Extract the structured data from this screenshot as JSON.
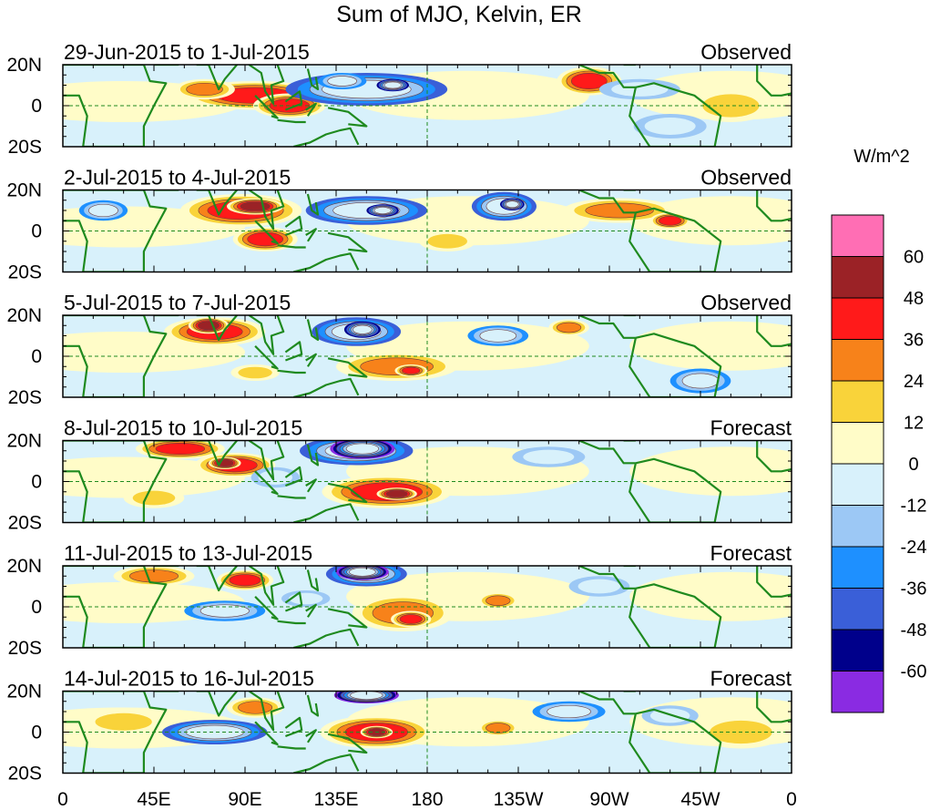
{
  "chart_data": {
    "type": "heatmap",
    "title": "Sum of MJO, Kelvin, ER",
    "colorbar": {
      "unit_label": "W/m^2",
      "tick_labels": [
        "60",
        "48",
        "36",
        "24",
        "12",
        "0",
        "-12",
        "-24",
        "-36",
        "-48",
        "-60"
      ],
      "levels": [
        -60,
        -48,
        -36,
        -24,
        -12,
        0,
        12,
        24,
        36,
        48,
        60
      ],
      "colors": [
        "#8a2be2",
        "#00008b",
        "#3a5fd8",
        "#1e90ff",
        "#9cc8f5",
        "#d8f1fb",
        "#fffcc8",
        "#f9d33a",
        "#f7821a",
        "#ff1a1a",
        "#9b2226",
        "#ff6eb4"
      ]
    },
    "x_axis": {
      "tick_labels": [
        "0",
        "45E",
        "90E",
        "135E",
        "180",
        "135W",
        "90W",
        "45W",
        "0"
      ],
      "lon_range": [
        0,
        360
      ]
    },
    "y_axis": {
      "tick_labels": [
        "20N",
        "0",
        "20S"
      ],
      "lat_range": [
        -20,
        20
      ]
    },
    "colors": {
      "coast": "#1f8a1f",
      "grid": "#1f8a1f"
    },
    "panels": [
      {
        "label": "29-Jun-2015 to 1-Jul-2015",
        "status": "Observed",
        "blobs": [
          {
            "lon": 95,
            "lat": 5,
            "rx": 35,
            "ry": 7,
            "v": 36
          },
          {
            "lon": 112,
            "lat": 0,
            "rx": 18,
            "ry": 6,
            "v": 36
          },
          {
            "lon": 70,
            "lat": 8,
            "rx": 15,
            "ry": 5,
            "v": 24
          },
          {
            "lon": 150,
            "lat": 8,
            "rx": 40,
            "ry": 8,
            "v": -36
          },
          {
            "lon": 163,
            "lat": 10,
            "rx": 8,
            "ry": 3,
            "v": -48
          },
          {
            "lon": 138,
            "lat": 12,
            "rx": 12,
            "ry": 4,
            "v": -24
          },
          {
            "lon": 260,
            "lat": 12,
            "rx": 16,
            "ry": 7,
            "v": 36
          },
          {
            "lon": 285,
            "lat": 8,
            "rx": 20,
            "ry": 5,
            "v": -12
          },
          {
            "lon": 300,
            "lat": -10,
            "rx": 18,
            "ry": 6,
            "v": -12
          },
          {
            "lon": 330,
            "lat": 0,
            "rx": 20,
            "ry": 8,
            "v": 12
          }
        ]
      },
      {
        "label": "2-Jul-2015 to 4-Jul-2015",
        "status": "Observed",
        "blobs": [
          {
            "lon": 88,
            "lat": 10,
            "rx": 30,
            "ry": 8,
            "v": 36
          },
          {
            "lon": 95,
            "lat": 12,
            "rx": 14,
            "ry": 4,
            "v": 48
          },
          {
            "lon": 100,
            "lat": -4,
            "rx": 16,
            "ry": 6,
            "v": 36
          },
          {
            "lon": 150,
            "lat": 10,
            "rx": 30,
            "ry": 7,
            "v": -36
          },
          {
            "lon": 158,
            "lat": 10,
            "rx": 8,
            "ry": 3,
            "v": -48
          },
          {
            "lon": 218,
            "lat": 12,
            "rx": 16,
            "ry": 7,
            "v": -36
          },
          {
            "lon": 222,
            "lat": 13,
            "rx": 6,
            "ry": 3,
            "v": -48
          },
          {
            "lon": 275,
            "lat": 10,
            "rx": 28,
            "ry": 6,
            "v": 24
          },
          {
            "lon": 300,
            "lat": 5,
            "rx": 10,
            "ry": 4,
            "v": 36
          },
          {
            "lon": 20,
            "lat": 10,
            "rx": 12,
            "ry": 5,
            "v": -24
          },
          {
            "lon": 190,
            "lat": -5,
            "rx": 14,
            "ry": 5,
            "v": 12
          }
        ]
      },
      {
        "label": "5-Jul-2015 to 7-Jul-2015",
        "status": "Observed",
        "blobs": [
          {
            "lon": 75,
            "lat": 12,
            "rx": 25,
            "ry": 7,
            "v": 36
          },
          {
            "lon": 72,
            "lat": 15,
            "rx": 10,
            "ry": 4,
            "v": 48
          },
          {
            "lon": 145,
            "lat": 12,
            "rx": 22,
            "ry": 7,
            "v": -36
          },
          {
            "lon": 148,
            "lat": 13,
            "rx": 9,
            "ry": 4,
            "v": -48
          },
          {
            "lon": 165,
            "lat": -5,
            "rx": 30,
            "ry": 7,
            "v": 24
          },
          {
            "lon": 172,
            "lat": -7,
            "rx": 8,
            "ry": 3,
            "v": 36
          },
          {
            "lon": 215,
            "lat": 10,
            "rx": 15,
            "ry": 5,
            "v": -24
          },
          {
            "lon": 250,
            "lat": 14,
            "rx": 10,
            "ry": 4,
            "v": 24
          },
          {
            "lon": 315,
            "lat": -12,
            "rx": 15,
            "ry": 6,
            "v": -24
          },
          {
            "lon": 95,
            "lat": -8,
            "rx": 12,
            "ry": 4,
            "v": 12
          }
        ]
      },
      {
        "label": "8-Jul-2015 to 10-Jul-2015",
        "status": "Forecast",
        "blobs": [
          {
            "lon": 58,
            "lat": 16,
            "rx": 22,
            "ry": 5,
            "v": 36
          },
          {
            "lon": 85,
            "lat": 8,
            "rx": 20,
            "ry": 6,
            "v": 36
          },
          {
            "lon": 80,
            "lat": 9,
            "rx": 8,
            "ry": 3,
            "v": 48
          },
          {
            "lon": 145,
            "lat": 15,
            "rx": 28,
            "ry": 7,
            "v": -36
          },
          {
            "lon": 148,
            "lat": 16,
            "rx": 16,
            "ry": 5,
            "v": -60
          },
          {
            "lon": 160,
            "lat": -5,
            "rx": 32,
            "ry": 8,
            "v": 36
          },
          {
            "lon": 165,
            "lat": -6,
            "rx": 10,
            "ry": 3,
            "v": 48
          },
          {
            "lon": 105,
            "lat": 2,
            "rx": 12,
            "ry": 5,
            "v": -12
          },
          {
            "lon": 240,
            "lat": 12,
            "rx": 18,
            "ry": 5,
            "v": -12
          },
          {
            "lon": 45,
            "lat": -8,
            "rx": 15,
            "ry": 5,
            "v": 12
          }
        ]
      },
      {
        "label": "11-Jul-2015 to 13-Jul-2015",
        "status": "Forecast",
        "blobs": [
          {
            "lon": 45,
            "lat": 15,
            "rx": 20,
            "ry": 5,
            "v": 24
          },
          {
            "lon": 90,
            "lat": 13,
            "rx": 14,
            "ry": 5,
            "v": 36
          },
          {
            "lon": 150,
            "lat": 16,
            "rx": 20,
            "ry": 6,
            "v": -36
          },
          {
            "lon": 148,
            "lat": 17,
            "rx": 13,
            "ry": 4,
            "v": -60
          },
          {
            "lon": 168,
            "lat": -3,
            "rx": 25,
            "ry": 9,
            "v": 24
          },
          {
            "lon": 172,
            "lat": -6,
            "rx": 10,
            "ry": 4,
            "v": 36
          },
          {
            "lon": 80,
            "lat": -2,
            "rx": 20,
            "ry": 5,
            "v": -24
          },
          {
            "lon": 215,
            "lat": 3,
            "rx": 10,
            "ry": 4,
            "v": 24
          },
          {
            "lon": 265,
            "lat": 10,
            "rx": 15,
            "ry": 5,
            "v": -12
          },
          {
            "lon": 120,
            "lat": 4,
            "rx": 12,
            "ry": 4,
            "v": -12
          }
        ]
      },
      {
        "label": "14-Jul-2015 to 16-Jul-2015",
        "status": "Forecast",
        "blobs": [
          {
            "lon": 30,
            "lat": 5,
            "rx": 20,
            "ry": 6,
            "v": 12
          },
          {
            "lon": 95,
            "lat": 12,
            "rx": 14,
            "ry": 5,
            "v": 24
          },
          {
            "lon": 75,
            "lat": 0,
            "rx": 26,
            "ry": 6,
            "v": -36
          },
          {
            "lon": 150,
            "lat": 18,
            "rx": 16,
            "ry": 4,
            "v": -60
          },
          {
            "lon": 155,
            "lat": 0,
            "rx": 28,
            "ry": 8,
            "v": 36
          },
          {
            "lon": 155,
            "lat": 0,
            "rx": 8,
            "ry": 3,
            "v": 48
          },
          {
            "lon": 215,
            "lat": 2,
            "rx": 10,
            "ry": 4,
            "v": 24
          },
          {
            "lon": 250,
            "lat": 10,
            "rx": 18,
            "ry": 5,
            "v": -24
          },
          {
            "lon": 300,
            "lat": 8,
            "rx": 14,
            "ry": 5,
            "v": -12
          },
          {
            "lon": 335,
            "lat": 0,
            "rx": 22,
            "ry": 8,
            "v": 12
          }
        ]
      }
    ]
  }
}
